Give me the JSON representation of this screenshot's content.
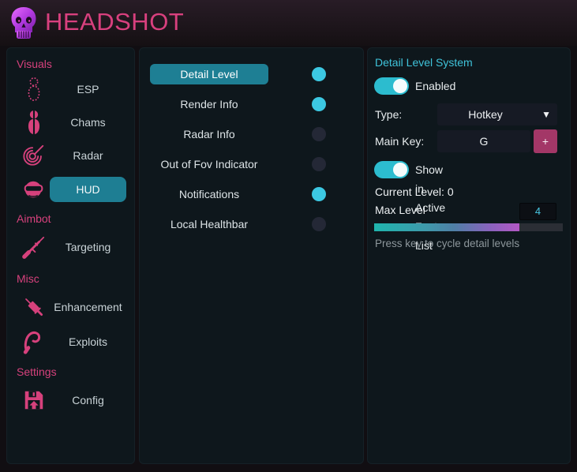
{
  "header": {
    "title": "HEADSHOT"
  },
  "icons": {
    "caret_down": "▼",
    "add_key": "+"
  },
  "sidebar": {
    "sections": [
      {
        "label": "Visuals"
      },
      {
        "label": "Aimbot"
      },
      {
        "label": "Misc"
      },
      {
        "label": "Settings"
      }
    ],
    "items": [
      {
        "label": "ESP",
        "selected": false
      },
      {
        "label": "Chams",
        "selected": false
      },
      {
        "label": "Radar",
        "selected": false
      },
      {
        "label": "HUD",
        "selected": true
      },
      {
        "label": "Targeting",
        "selected": false
      },
      {
        "label": "Enhancement",
        "selected": false
      },
      {
        "label": "Exploits",
        "selected": false
      },
      {
        "label": "Config",
        "selected": false
      }
    ]
  },
  "feature_list": {
    "items": [
      {
        "label": "Detail Level",
        "enabled": true,
        "selected": true
      },
      {
        "label": "Render Info",
        "enabled": true,
        "selected": false
      },
      {
        "label": "Radar Info",
        "enabled": false,
        "selected": false
      },
      {
        "label": "Out of Fov Indicator",
        "enabled": false,
        "selected": false
      },
      {
        "label": "Notifications",
        "enabled": true,
        "selected": false
      },
      {
        "label": "Local Healthbar",
        "enabled": false,
        "selected": false
      }
    ]
  },
  "detail_panel": {
    "title": "Detail Level System",
    "enabled_label": "Enabled",
    "enabled": true,
    "type_label": "Type:",
    "type_value": "Hotkey",
    "main_key_label": "Main Key:",
    "main_key_value": "G",
    "show_label": "Show in Active Feature List",
    "show_enabled": true,
    "current_level_label": "Current Level: 0",
    "max_level_label": "Max Level",
    "max_level_value": "4",
    "slider_percent": 77,
    "hint": "Press key to cycle detail levels"
  },
  "colors": {
    "accent_pink": "#d6417c",
    "title_pink": "#d8407e",
    "selected_teal": "#1e7e93",
    "toggle_cyan": "#3cc8e2",
    "panel_bg": "#0e171c",
    "plus_button": "#a33767",
    "slider_gradient_start": "#1fb5ad",
    "slider_gradient_end": "#b358c4"
  }
}
